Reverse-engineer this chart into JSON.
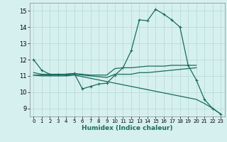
{
  "xlabel": "Humidex (Indice chaleur)",
  "bg_color": "#d6f0ef",
  "grid_color": "#b8dcd8",
  "line_color": "#1a6b5e",
  "xlim": [
    -0.5,
    23.5
  ],
  "ylim": [
    8.5,
    15.5
  ],
  "yticks": [
    9,
    10,
    11,
    12,
    13,
    14,
    15
  ],
  "xticks": [
    0,
    1,
    2,
    3,
    4,
    5,
    6,
    7,
    8,
    9,
    10,
    11,
    12,
    13,
    14,
    15,
    16,
    17,
    18,
    19,
    20,
    21,
    22,
    23
  ],
  "lines": [
    {
      "x": [
        0,
        1,
        2,
        3,
        4,
        5,
        6,
        7,
        8,
        9,
        10,
        11,
        12,
        13,
        14,
        15,
        16,
        17,
        18,
        19,
        20,
        21,
        22,
        23
      ],
      "y": [
        12.0,
        11.35,
        11.1,
        11.1,
        11.1,
        11.15,
        10.2,
        10.35,
        10.5,
        10.55,
        11.05,
        11.5,
        12.55,
        14.45,
        14.4,
        15.1,
        14.8,
        14.45,
        14.0,
        11.65,
        10.75,
        9.55,
        9.0,
        8.65
      ],
      "has_markers": true
    },
    {
      "x": [
        0,
        1,
        2,
        3,
        4,
        5,
        6,
        7,
        8,
        9,
        10,
        11,
        12,
        13,
        14,
        15,
        16,
        17,
        18,
        19,
        20
      ],
      "y": [
        11.2,
        11.1,
        11.1,
        11.1,
        11.1,
        11.15,
        11.1,
        11.05,
        11.05,
        11.05,
        11.45,
        11.5,
        11.5,
        11.55,
        11.6,
        11.6,
        11.6,
        11.65,
        11.65,
        11.65,
        11.65
      ],
      "has_markers": false
    },
    {
      "x": [
        0,
        1,
        2,
        3,
        4,
        5,
        6,
        7,
        8,
        9,
        10,
        11,
        12,
        13,
        14,
        15,
        16,
        17,
        18,
        19,
        20
      ],
      "y": [
        11.05,
        11.05,
        11.05,
        11.05,
        11.05,
        11.1,
        11.05,
        11.0,
        10.95,
        10.9,
        11.1,
        11.1,
        11.1,
        11.2,
        11.2,
        11.25,
        11.3,
        11.35,
        11.4,
        11.45,
        11.5
      ],
      "has_markers": false
    },
    {
      "x": [
        0,
        1,
        2,
        3,
        4,
        5,
        6,
        7,
        8,
        9,
        10,
        11,
        12,
        13,
        14,
        15,
        16,
        17,
        18,
        19,
        20,
        21,
        22,
        23
      ],
      "y": [
        11.05,
        11.0,
        11.0,
        11.0,
        11.0,
        11.05,
        10.95,
        10.85,
        10.75,
        10.65,
        10.55,
        10.45,
        10.35,
        10.25,
        10.15,
        10.05,
        9.95,
        9.85,
        9.75,
        9.65,
        9.55,
        9.3,
        9.0,
        8.65
      ],
      "has_markers": false
    }
  ]
}
